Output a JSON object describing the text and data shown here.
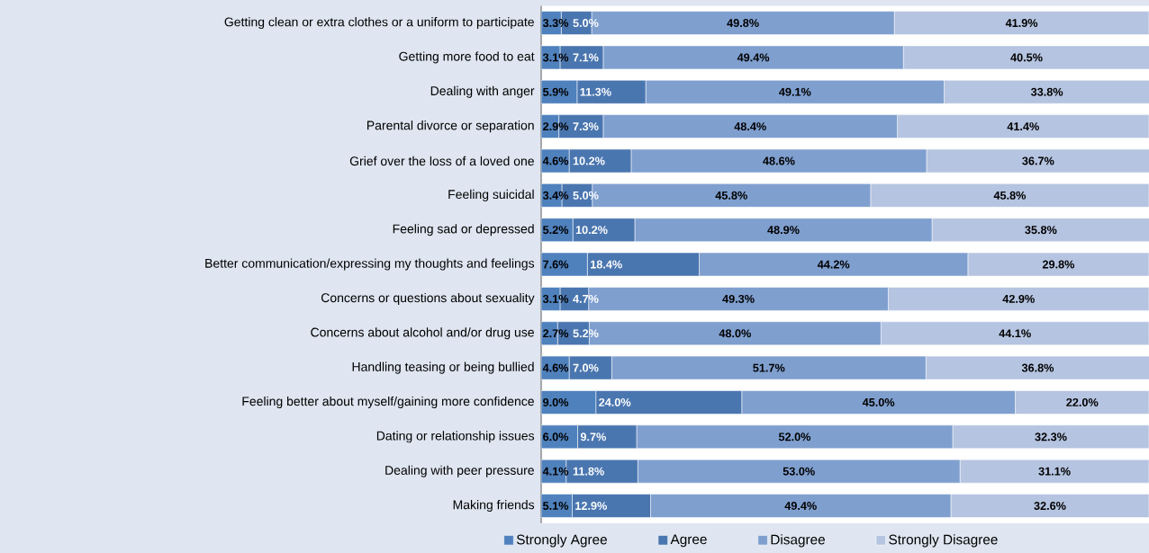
{
  "chart_data": {
    "type": "bar",
    "orientation": "horizontal",
    "stacked": true,
    "categories": [
      "Getting clean or extra clothes or a uniform to participate",
      "Getting more food to eat",
      "Dealing with anger",
      "Parental divorce or separation",
      "Grief over the loss of a loved one",
      "Feeling suicidal",
      "Feeling sad or depressed",
      "Better communication/expressing my thoughts and feelings",
      "Concerns or questions about sexuality",
      "Concerns about alcohol and/or drug use",
      "Handling teasing or being bullied",
      "Feeling better about myself/gaining more confidence",
      "Dating or relationship issues",
      "Dealing with peer pressure",
      "Making friends"
    ],
    "xlim": [
      0,
      100
    ],
    "tick_labels": "y",
    "legend": "bottom",
    "series": [
      {
        "name": "Strongly Agree",
        "color": "#4f81bd",
        "values": [
          3.3,
          3.1,
          5.9,
          2.9,
          4.6,
          3.4,
          5.2,
          7.6,
          3.1,
          2.7,
          4.6,
          9.0,
          6.0,
          4.1,
          5.1
        ],
        "value_labels": [
          "3.3%",
          "3.1%",
          "5.9%",
          "2.9%",
          "4.6%",
          "3.4%",
          "5.2%",
          "7.6%",
          "3.1%",
          "2.7%",
          "4.6%",
          "9.0%",
          "6.0%",
          "4.1%",
          "5.1%"
        ]
      },
      {
        "name": "Agree",
        "color": "#4a76b0",
        "values": [
          5.0,
          7.1,
          11.3,
          7.3,
          10.2,
          5.0,
          10.2,
          18.4,
          4.7,
          5.2,
          7.0,
          24.0,
          9.7,
          11.8,
          12.9
        ],
        "value_labels": [
          "5.0%",
          "7.1%",
          "11.3%",
          "7.3%",
          "10.2%",
          "5.0%",
          "10.2%",
          "18.4%",
          "4.7%",
          "5.2%",
          "7.0%",
          "24.0%",
          "9.7%",
          "11.8%",
          "12.9%"
        ]
      },
      {
        "name": "Disagree",
        "color": "#7f9fcf",
        "values": [
          49.8,
          49.4,
          49.1,
          48.4,
          48.6,
          45.8,
          48.9,
          44.2,
          49.3,
          48.0,
          51.7,
          45.0,
          52.0,
          53.0,
          49.4
        ],
        "value_labels": [
          "49.8%",
          "49.4%",
          "49.1%",
          "48.4%",
          "48.6%",
          "45.8%",
          "48.9%",
          "44.2%",
          "49.3%",
          "48.0%",
          "51.7%",
          "45.0%",
          "52.0%",
          "53.0%",
          "49.4%"
        ]
      },
      {
        "name": "Strongly Disagree",
        "color": "#b5c4e0",
        "values": [
          41.9,
          40.5,
          33.8,
          41.4,
          36.7,
          45.8,
          35.8,
          29.8,
          42.9,
          44.1,
          36.8,
          22.0,
          32.3,
          31.1,
          32.6
        ],
        "value_labels": [
          "41.9%",
          "40.5%",
          "33.8%",
          "41.4%",
          "36.7%",
          "45.8%",
          "35.8%",
          "29.8%",
          "42.9%",
          "44.1%",
          "36.8%",
          "22.0%",
          "32.3%",
          "31.1%",
          "32.6%"
        ]
      }
    ]
  }
}
